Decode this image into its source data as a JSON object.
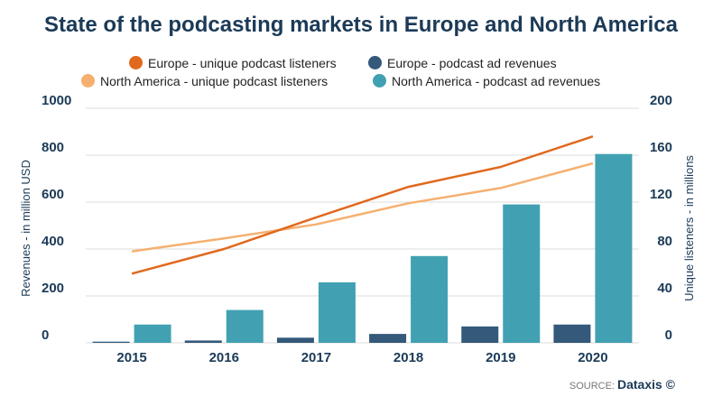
{
  "chart_data": {
    "type": "bar",
    "title": "State of the podcasting markets in Europe and North America",
    "categories": [
      "2015",
      "2016",
      "2017",
      "2018",
      "2019",
      "2020"
    ],
    "left_axis": {
      "label": "Revenues - in million USD",
      "ylim": [
        0,
        1000
      ],
      "ticks": [
        "0",
        "200",
        "400",
        "600",
        "800",
        "1000"
      ]
    },
    "right_axis": {
      "label": "Unique listeners - in millions",
      "ylim": [
        0,
        200
      ],
      "ticks": [
        "0",
        "40",
        "80",
        "120",
        "160",
        "200"
      ]
    },
    "grid": true,
    "series": [
      {
        "name": "Europe - podcast ad revenues",
        "type": "bar",
        "axis": "left",
        "color": "#34597a",
        "values": [
          5,
          10,
          22,
          38,
          70,
          78
        ]
      },
      {
        "name": "North America - podcast ad revenues",
        "type": "bar",
        "axis": "left",
        "color": "#41a1b2",
        "values": [
          78,
          140,
          258,
          370,
          590,
          805
        ]
      },
      {
        "name": "Europe - unique podcast listeners",
        "type": "line",
        "axis": "right",
        "color": "#e0691e",
        "values": [
          59,
          80,
          107,
          133,
          150,
          176
        ]
      },
      {
        "name": "North America - unique podcast listeners",
        "type": "line",
        "axis": "right",
        "color": "#f5b071",
        "values": [
          78,
          89,
          101,
          119,
          132,
          153
        ]
      }
    ],
    "legend_position": "top"
  },
  "source": {
    "prefix": "SOURCE:",
    "name": "Dataxis ©"
  }
}
